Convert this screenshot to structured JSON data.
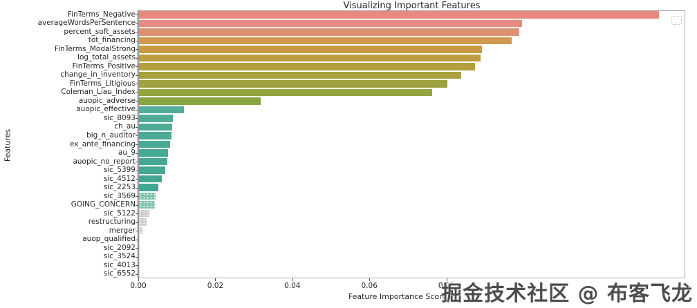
{
  "watermark": {
    "text": "掘金技术社区 @ 布客飞龙"
  },
  "legend": {
    "state": "empty-placeholder"
  },
  "chart_data": {
    "type": "bar",
    "orientation": "horizontal",
    "title": "Visualizing Important Features",
    "xlabel": "Feature Importance Score",
    "ylabel": "Features",
    "xlim": [
      0,
      0.142
    ],
    "xticks": [
      0.0,
      0.02,
      0.04,
      0.06,
      0.08
    ],
    "xtick_labels": [
      "0.00",
      "0.02",
      "0.04",
      "0.06",
      "0.08"
    ],
    "grid": false,
    "legend_position": "upper-right",
    "categories": [
      "FinTerms_Negative",
      "averageWordsPerSentence",
      "percent_soft_assets",
      "tot_financing",
      "FinTerms_ModalStrong",
      "log_total_assets",
      "FinTerms_Positive",
      "change_in_inventory",
      "FinTerms_Litigious",
      "Coleman_Liau_Index",
      "auopic_adverse",
      "auopic_effective",
      "sic_8093",
      "ch_au",
      "big_n_auditor",
      "ex_ante_financing",
      "au_9",
      "auopic_no_report",
      "sic_5399",
      "sic_4512",
      "sic_2253",
      "sic_3569",
      "GOING_CONCERN",
      "sic_5122",
      "restructuring",
      "merger",
      "auop_qualified",
      "sic_2092",
      "sic_3524",
      "sic_4013",
      "sic_6552"
    ],
    "values": [
      0.135,
      0.0995,
      0.0988,
      0.0968,
      0.0891,
      0.0886,
      0.0872,
      0.0836,
      0.08,
      0.0762,
      0.0316,
      0.0117,
      0.0088,
      0.0087,
      0.0084,
      0.0081,
      0.0075,
      0.0073,
      0.0068,
      0.0059,
      0.005,
      0.0043,
      0.0042,
      0.0027,
      0.0019,
      0.0009,
      0.0002,
      0.0001,
      5e-05,
      5e-05,
      3e-05
    ],
    "colors": [
      "#e6897f",
      "#e58b81",
      "#dc9170",
      "#d09950",
      "#c79b43",
      "#bd9d3e",
      "#b49e3d",
      "#a9a03e",
      "#9ea23e",
      "#93a43f",
      "#89a53f",
      "#54ad98",
      "#50ac97",
      "#4dab96",
      "#4aaa96",
      "#48aa95",
      "#46a995",
      "#45a894",
      "#44a894",
      "#43a793",
      "#42a793",
      "#7fc4af",
      "#84c6b1",
      "#cfcbc5",
      "#d3cfc9",
      "#d6d2cc",
      "#d9d5cf",
      "#d9d5cf",
      "#d9d5cf",
      "#d9d5cf",
      "#d9d5cf"
    ],
    "hatched_indices": [
      21,
      22,
      23,
      24,
      25
    ]
  }
}
